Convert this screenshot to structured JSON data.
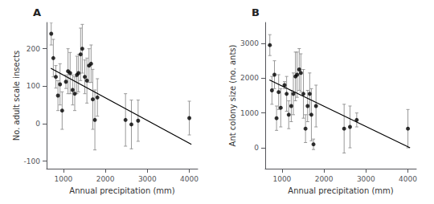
{
  "chart_data": [
    {
      "type": "scatter",
      "title": "A",
      "xlabel": "Annual precipitation (mm)",
      "ylabel": "No. adult scale insects",
      "xlim": [
        600,
        4200
      ],
      "ylim": [
        -120,
        270
      ],
      "xticks": [
        1000,
        2000,
        3000,
        4000
      ],
      "yticks": [
        -100,
        0,
        100,
        200
      ],
      "grid": false,
      "series": [
        {
          "type": "scatter",
          "color": "black",
          "error_color": "#999999",
          "x": [
            710,
            760,
            820,
            870,
            920,
            970,
            1060,
            1110,
            1160,
            1220,
            1270,
            1320,
            1360,
            1410,
            1450,
            1510,
            1560,
            1610,
            1660,
            1700,
            1750,
            1810,
            2480,
            2620,
            2780,
            4000
          ],
          "values": [
            240,
            175,
            125,
            75,
            105,
            35,
            112,
            140,
            135,
            90,
            80,
            130,
            135,
            185,
            200,
            125,
            115,
            155,
            160,
            65,
            10,
            70,
            10,
            -2,
            8,
            15
          ],
          "error_lo": [
            30,
            50,
            30,
            40,
            55,
            50,
            18,
            60,
            55,
            40,
            45,
            50,
            50,
            70,
            65,
            45,
            60,
            45,
            50,
            80,
            80,
            50,
            70,
            65,
            55,
            45
          ],
          "error_hi": [
            30,
            50,
            30,
            40,
            55,
            50,
            18,
            60,
            55,
            40,
            45,
            50,
            50,
            70,
            65,
            45,
            60,
            45,
            50,
            80,
            80,
            50,
            70,
            65,
            55,
            45
          ]
        },
        {
          "type": "line",
          "color": "black",
          "x": [
            700,
            4050
          ],
          "values": [
            148,
            -55
          ]
        }
      ]
    },
    {
      "type": "scatter",
      "title": "B",
      "xlabel": "Annual precipitation (mm)",
      "ylabel": "Ant colony size (no. ants)",
      "xlim": [
        600,
        4200
      ],
      "ylim": [
        -600,
        3600
      ],
      "xticks": [
        1000,
        2000,
        3000,
        4000
      ],
      "yticks": [
        0,
        1000,
        2000,
        3000
      ],
      "grid": false,
      "series": [
        {
          "type": "scatter",
          "color": "black",
          "error_color": "#999999",
          "x": [
            710,
            760,
            820,
            870,
            920,
            970,
            1060,
            1110,
            1160,
            1220,
            1270,
            1320,
            1360,
            1410,
            1450,
            1510,
            1560,
            1610,
            1660,
            1700,
            1750,
            1810,
            2480,
            2620,
            2780,
            4000
          ],
          "values": [
            2950,
            1650,
            2100,
            850,
            1600,
            1150,
            1800,
            1550,
            950,
            1200,
            1550,
            2050,
            2100,
            2250,
            2150,
            1550,
            550,
            1200,
            1550,
            950,
            100,
            1200,
            550,
            600,
            800,
            550
          ],
          "error_lo": [
            300,
            400,
            400,
            350,
            500,
            550,
            100,
            500,
            400,
            450,
            600,
            700,
            650,
            600,
            550,
            700,
            400,
            450,
            600,
            750,
            150,
            600,
            700,
            600,
            200,
            550
          ],
          "error_hi": [
            300,
            400,
            400,
            350,
            500,
            550,
            100,
            500,
            400,
            450,
            600,
            700,
            650,
            600,
            550,
            700,
            400,
            450,
            600,
            750,
            150,
            600,
            700,
            600,
            200,
            550
          ]
        },
        {
          "type": "line",
          "color": "black",
          "x": [
            700,
            4050
          ],
          "values": [
            1950,
            0
          ]
        }
      ]
    }
  ]
}
